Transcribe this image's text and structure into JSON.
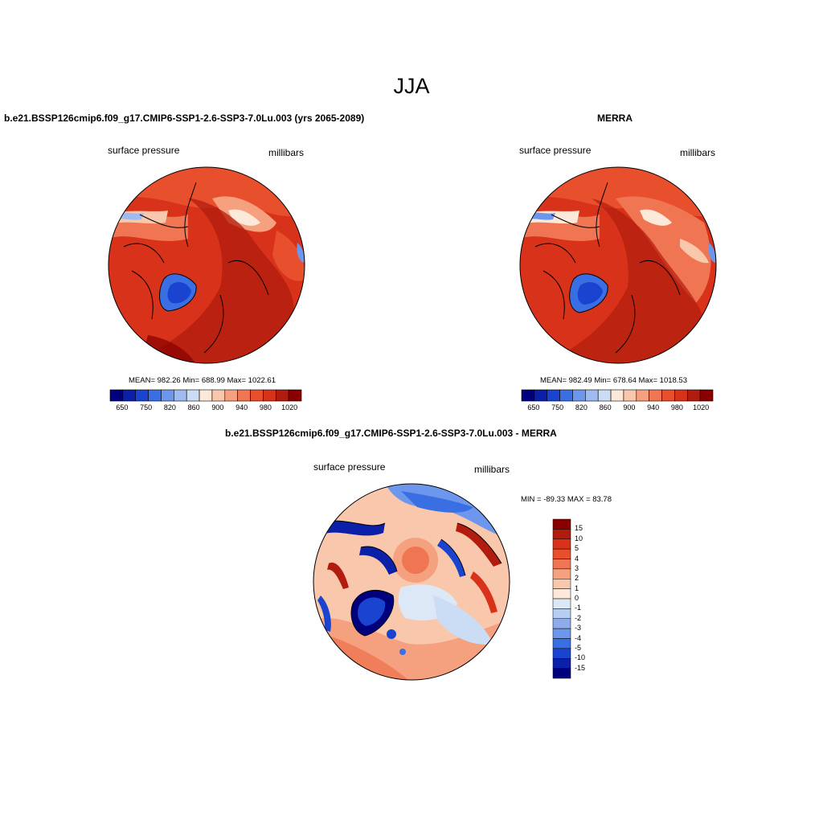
{
  "figure": {
    "season": "JJA"
  },
  "panels": [
    {
      "title": "b.e21.BSSP126cmip6.f09_g17.CMIP6-SSP1-2.6-SSP3-7.0Lu.003 (yrs 2065-2089)",
      "variable": "surface pressure",
      "units": "millibars",
      "stats": "MEAN= 982.26  Min= 688.99  Max= 1022.61"
    },
    {
      "title": "MERRA",
      "variable": "surface pressure",
      "units": "millibars",
      "stats": "MEAN= 982.49  Min= 678.64  Max= 1018.53"
    },
    {
      "title": "b.e21.BSSP126cmip6.f09_g17.CMIP6-SSP1-2.6-SSP3-7.0Lu.003 - MERRA",
      "variable": "surface pressure",
      "units": "millibars",
      "stats": "MIN = -89.33 MAX =  83.78"
    }
  ],
  "colorbars": {
    "absolute": {
      "labels": [
        "650",
        "750",
        "820",
        "860",
        "900",
        "940",
        "980",
        "1020"
      ],
      "colors": [
        "#00007f",
        "#0b1fa8",
        "#1a44d0",
        "#3a6fe4",
        "#6c97ec",
        "#9fbbf0",
        "#cbdcf5",
        "#fde9d9",
        "#f9c7ac",
        "#f5a07e",
        "#f07552",
        "#e84f2d",
        "#d8331a",
        "#b21c0e",
        "#880000"
      ]
    },
    "difference": {
      "labels": [
        "15",
        "10",
        "5",
        "4",
        "3",
        "2",
        "1",
        "0",
        "-1",
        "-2",
        "-3",
        "-4",
        "-5",
        "-10",
        "-15"
      ],
      "colors": [
        "#880000",
        "#b21c0e",
        "#d8331a",
        "#e84f2d",
        "#f07552",
        "#f5a07e",
        "#f9c7ac",
        "#fde9d9",
        "#dde8f7",
        "#b7cdf2",
        "#8eacea",
        "#6c97ec",
        "#3a6fe4",
        "#1a44d0",
        "#0b1fa8",
        "#00007f"
      ]
    }
  }
}
